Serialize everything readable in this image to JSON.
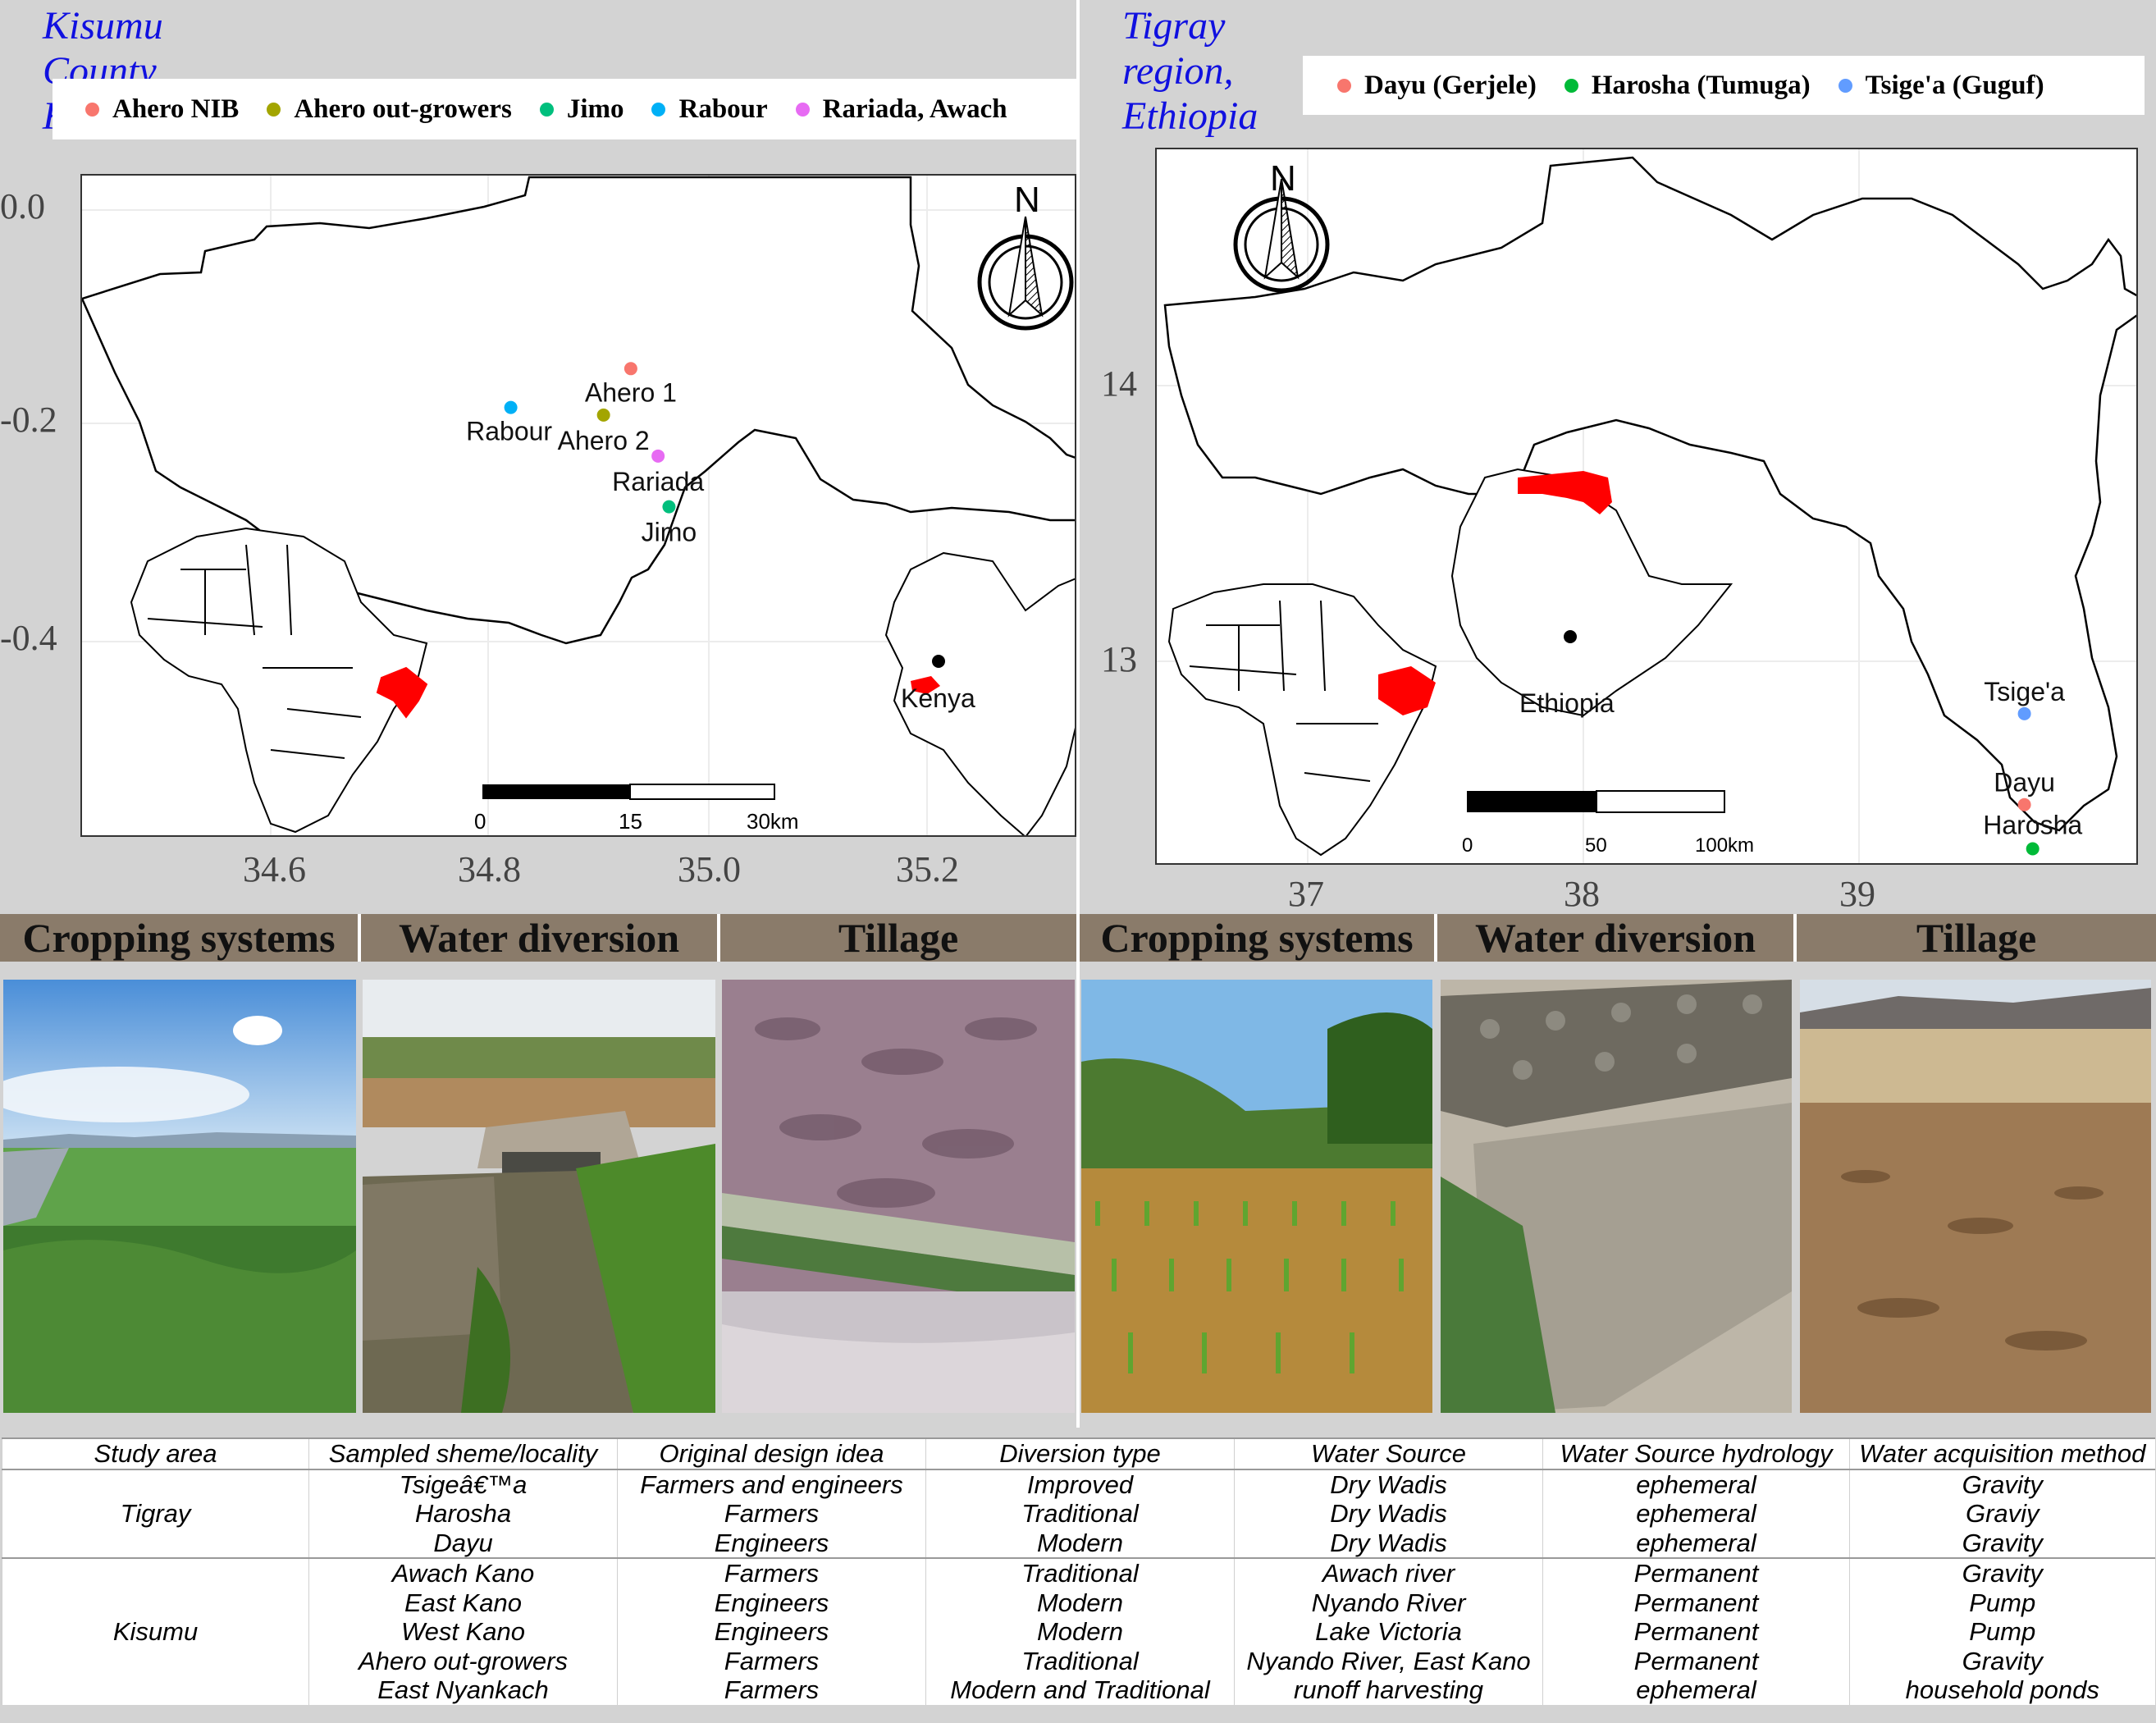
{
  "kenya_panel": {
    "title": "Kisumu County, Kenya",
    "legend": [
      {
        "label": "Ahero NIB",
        "color": "#f8766d"
      },
      {
        "label": "Ahero out-growers",
        "color": "#a3a500"
      },
      {
        "label": "Jimo",
        "color": "#00bf7d"
      },
      {
        "label": "Rabour",
        "color": "#00b0f6"
      },
      {
        "label": "Rariada, Awach",
        "color": "#e76bf3"
      }
    ],
    "y_ticks": [
      "0.0",
      "-0.2",
      "-0.4"
    ],
    "x_ticks": [
      "34.6",
      "34.8",
      "35.0",
      "35.2"
    ],
    "points": [
      {
        "label": "Ahero 1",
        "lon": 34.93,
        "lat": -0.147,
        "color": "#f8766d"
      },
      {
        "label": "Ahero 2",
        "lon": 34.905,
        "lat": -0.19,
        "color": "#a3a500"
      },
      {
        "label": "Rabour",
        "lon": 34.82,
        "lat": -0.183,
        "color": "#00b0f6"
      },
      {
        "label": "Rariada",
        "lon": 34.955,
        "lat": -0.228,
        "color": "#e76bf3"
      },
      {
        "label": "Jimo",
        "lon": 34.965,
        "lat": -0.275,
        "color": "#00bf7d"
      }
    ],
    "north_label": "N",
    "inset_label": "Kenya",
    "scalebar": [
      "0",
      "15",
      "30km"
    ]
  },
  "ethiopia_panel": {
    "title": "Tigray region, Ethiopia",
    "legend": [
      {
        "label": "Dayu (Gerjele)",
        "color": "#f8766d"
      },
      {
        "label": "Harosha (Tumuga)",
        "color": "#00ba38"
      },
      {
        "label": "Tsige'a (Guguf)",
        "color": "#619cff"
      }
    ],
    "y_ticks": [
      "14",
      "13"
    ],
    "x_ticks": [
      "37",
      "38",
      "39"
    ],
    "points": [
      {
        "label": "Tsige'a",
        "lon": 39.6,
        "lat": 12.81,
        "color": "#619cff"
      },
      {
        "label": "Dayu",
        "lon": 39.6,
        "lat": 12.48,
        "color": "#f8766d"
      },
      {
        "label": "Harosha",
        "lon": 39.63,
        "lat": 12.32,
        "color": "#00ba38"
      }
    ],
    "north_label": "N",
    "inset_label": "Ethiopia",
    "scalebar": [
      "0",
      "50",
      "100km"
    ]
  },
  "photo_headers": [
    "Cropping systems",
    "Water diversion",
    "Tillage",
    "Cropping systems",
    "Water diversion",
    "Tillage"
  ],
  "table": {
    "headers": [
      "Study area",
      "Sampled sheme/locality",
      "Original design idea",
      "Diversion type",
      "Water Source",
      "Water Source hydrology",
      "Water acquisition method"
    ],
    "groups": [
      {
        "area": "Tigray",
        "rows": [
          [
            "Tsigeâ€™a",
            "Farmers and engineers",
            "Improved",
            "Dry Wadis",
            "ephemeral",
            "Gravity"
          ],
          [
            "Harosha",
            "Farmers",
            "Traditional",
            "Dry Wadis",
            "ephemeral",
            "Graviy"
          ],
          [
            "Dayu",
            "Engineers",
            "Modern",
            "Dry Wadis",
            "ephemeral",
            "Gravity"
          ]
        ]
      },
      {
        "area": "Kisumu",
        "rows": [
          [
            "Awach Kano",
            "Farmers",
            "Traditional",
            "Awach river",
            "Permanent",
            "Gravity"
          ],
          [
            "East Kano",
            "Engineers",
            "Modern",
            "Nyando River",
            "Permanent",
            "Pump"
          ],
          [
            "West Kano",
            "Engineers",
            "Modern",
            "Lake Victoria",
            "Permanent",
            "Pump"
          ],
          [
            "Ahero out-growers",
            "Farmers",
            "Traditional",
            "Nyando River, East Kano",
            "Permanent",
            "Gravity"
          ],
          [
            "East Nyankach",
            "Farmers",
            "Modern and Traditional",
            "runoff harvesting",
            "ephemeral",
            "household ponds"
          ]
        ]
      }
    ]
  }
}
